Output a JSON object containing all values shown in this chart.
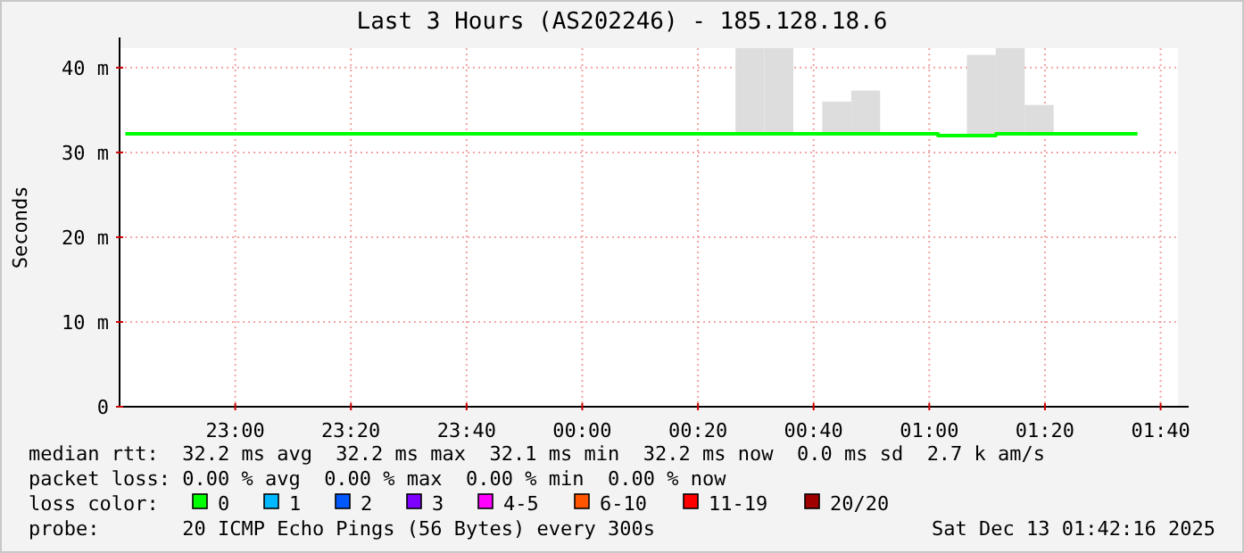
{
  "chart_data": {
    "type": "step",
    "title": "Last 3 Hours (AS202246) - 185.128.18.6",
    "ylabel": "Seconds",
    "legend_title": "loss color:",
    "legend": "bottom",
    "grid": true,
    "line_style": "solid",
    "marker": "none",
    "xlim": [
      "2025-12-12T22:40",
      "2025-12-13T01:43"
    ],
    "ylim": [
      0,
      42.3
    ],
    "xticks": [
      {
        "value": "2025-12-12T23:00",
        "label": "23:00"
      },
      {
        "value": "2025-12-12T23:20",
        "label": "23:20"
      },
      {
        "value": "2025-12-12T23:40",
        "label": "23:40"
      },
      {
        "value": "2025-12-13T00:00",
        "label": "00:00"
      },
      {
        "value": "2025-12-13T00:20",
        "label": "00:20"
      },
      {
        "value": "2025-12-13T00:40",
        "label": "00:40"
      },
      {
        "value": "2025-12-13T01:00",
        "label": "01:00"
      },
      {
        "value": "2025-12-13T01:20",
        "label": "01:20"
      },
      {
        "value": "2025-12-13T01:40",
        "label": "01:40"
      }
    ],
    "yticks": [
      0,
      {
        "value": 10,
        "label": "10 m"
      },
      {
        "value": 20,
        "label": "20 m"
      },
      {
        "value": 30,
        "label": "30 m"
      },
      {
        "value": 40,
        "label": "40 m"
      }
    ],
    "series": [
      {
        "name": "0",
        "color": "#00ff00",
        "x": [
          "2025-12-12T22:41",
          "2025-12-12T22:44",
          "2025-12-12T22:49",
          "2025-12-12T22:54",
          "2025-12-12T22:59",
          "2025-12-12T23:04",
          "2025-12-12T23:09",
          "2025-12-12T23:14",
          "2025-12-12T23:19",
          "2025-12-12T23:24",
          "2025-12-12T23:29",
          "2025-12-12T23:34",
          "2025-12-12T23:39",
          "2025-12-12T23:44",
          "2025-12-12T23:49",
          "2025-12-12T23:54",
          "2025-12-12T23:59",
          "2025-12-13T00:04",
          "2025-12-13T00:09",
          "2025-12-13T00:14",
          "2025-12-13T00:19",
          "2025-12-13T00:24",
          "2025-12-13T00:29",
          "2025-12-13T00:34",
          "2025-12-13T00:39",
          "2025-12-13T00:44",
          "2025-12-13T00:49",
          "2025-12-13T00:54",
          "2025-12-13T00:59",
          "2025-12-13T01:04",
          "2025-12-13T01:09",
          "2025-12-13T01:14",
          "2025-12-13T01:19",
          "2025-12-13T01:24",
          "2025-12-13T01:29",
          "2025-12-13T01:34",
          "2025-12-13T01:36"
        ],
        "values": [
          32.2,
          32.2,
          32.2,
          32.2,
          32.2,
          32.2,
          32.2,
          32.2,
          32.2,
          32.2,
          32.2,
          32.2,
          32.2,
          32.2,
          32.2,
          32.2,
          32.2,
          32.2,
          32.2,
          32.2,
          32.2,
          32.2,
          32.2,
          32.2,
          32.2,
          32.2,
          32.2,
          32.2,
          32.2,
          32,
          32,
          32.2,
          32.2,
          32.2,
          32.2,
          32.2,
          32.2
        ]
      },
      {
        "type": "bar",
        "color": "#dddddd",
        "x": [
          "2025-12-13T00:29",
          "2025-12-13T00:34",
          "2025-12-13T00:44",
          "2025-12-13T00:49",
          "2025-12-13T01:09",
          "2025-12-13T01:14",
          "2025-12-13T01:19"
        ],
        "base": [
          32.2,
          32.2,
          32.2,
          32.2,
          32,
          32.2,
          32.2
        ],
        "values": [
          10.1,
          10.1,
          3.8,
          5.1,
          9.5,
          10.1,
          3.4
        ]
      },
      {
        "name": "1",
        "color": "#00b8ff"
      },
      {
        "name": "2",
        "color": "#0059ff"
      },
      {
        "name": "3",
        "color": "#7e00ff"
      },
      {
        "name": "4-5",
        "color": "#ff00ff"
      },
      {
        "name": "6-10",
        "color": "#ff5500"
      },
      {
        "name": "11-19",
        "color": "#ff0000"
      },
      {
        "name": "20/20",
        "color": "#a10000"
      }
    ],
    "annotations": [
      "median rtt:  32.2 ms avg  32.2 ms max  32.1 ms min  32.2 ms now  0.0 ms sd  2.7 k am/s",
      "packet loss: 0.00 % avg  0.00 % max  0.00 % min  0.00 % now",
      "probe:       20 ICMP Echo Pings (56 Bytes) every 300s",
      "Sat Dec 13 01:42:16 2025"
    ]
  }
}
